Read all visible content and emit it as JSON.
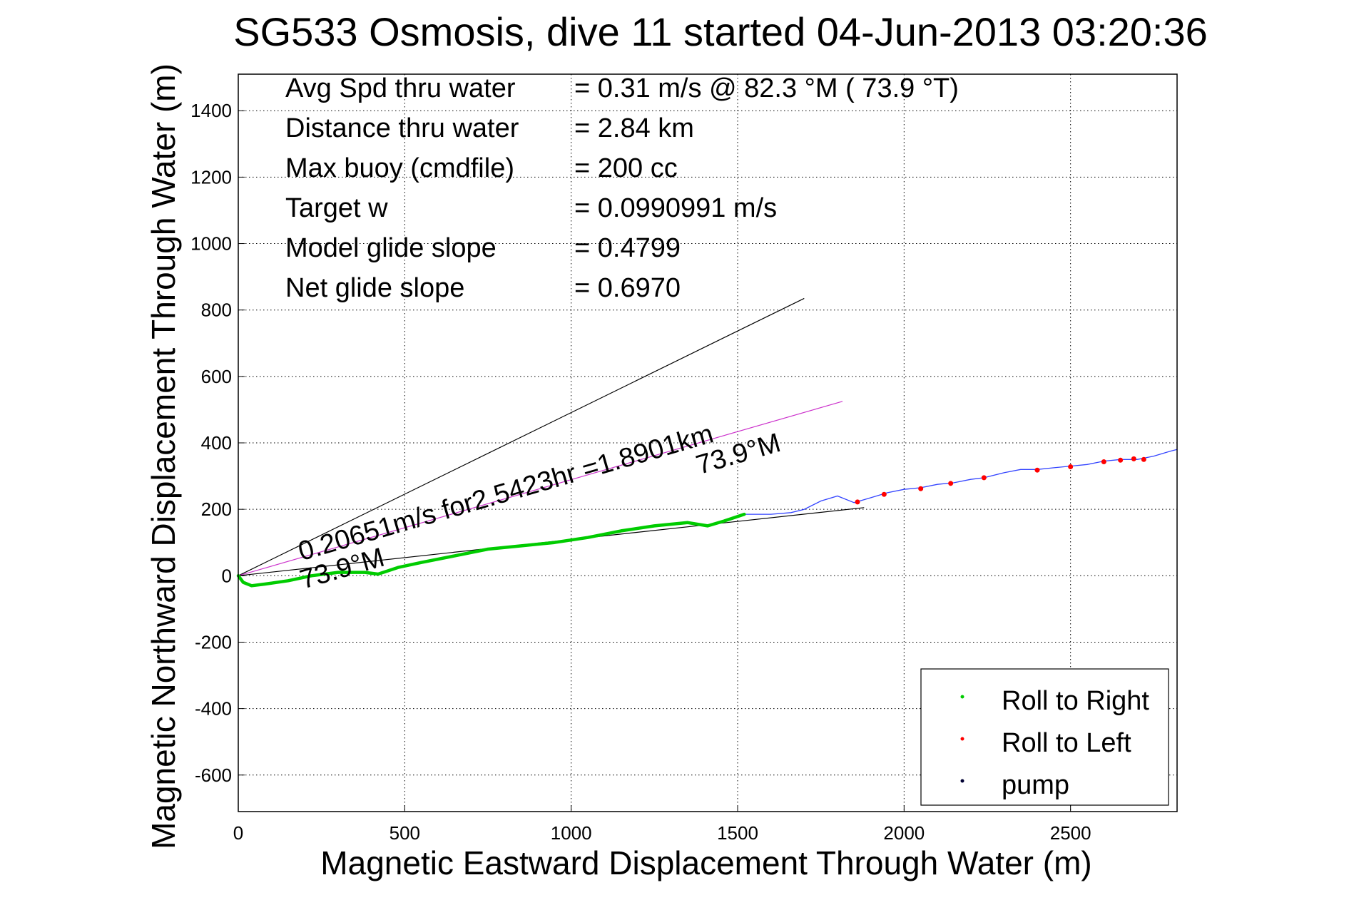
{
  "chart_data": {
    "type": "line",
    "title": "SG533 Osmosis, dive 11 started 04-Jun-2013 03:20:36",
    "xlabel": "Magnetic Eastward Displacement Through Water (m)",
    "ylabel": "Magnetic Northward Displacement Through Water (m)",
    "xlim": [
      0,
      2820
    ],
    "ylim": [
      -710,
      1510
    ],
    "xticks": [
      0,
      500,
      1000,
      1500,
      2000,
      2500
    ],
    "yticks": [
      -600,
      -400,
      -200,
      0,
      200,
      400,
      600,
      800,
      1000,
      1200,
      1400
    ],
    "grid": true,
    "stats": [
      {
        "label": "Avg Spd thru water",
        "value": "=  0.31 m/s @  82.3 °M ( 73.9 °T)"
      },
      {
        "label": "Distance thru water",
        "value": "=  2.84 km"
      },
      {
        "label": "Max buoy (cmdfile)",
        "value": "= 200 cc"
      },
      {
        "label": "Target w",
        "value": "= 0.0990991 m/s"
      },
      {
        "label": "Model glide slope",
        "value": "= 0.4799"
      },
      {
        "label": "Net glide slope",
        "value": "= 0.6970"
      }
    ],
    "annotations": {
      "current_text": "0.20651m/s for2.5423hr =1.8901km",
      "heading_label": "73.9°M"
    },
    "reference_lines": [
      {
        "color": "#000000",
        "points": [
          [
            0,
            0
          ],
          [
            1700,
            835
          ]
        ]
      },
      {
        "color": "#cc33cc",
        "points": [
          [
            0,
            0
          ],
          [
            1815,
            525
          ]
        ]
      },
      {
        "color": "#000000",
        "points": [
          [
            0,
            0
          ],
          [
            1880,
            205
          ]
        ]
      }
    ],
    "track": {
      "color": "#3344ff",
      "points": [
        [
          0,
          0
        ],
        [
          15,
          -20
        ],
        [
          40,
          -30
        ],
        [
          80,
          -25
        ],
        [
          150,
          -15
        ],
        [
          220,
          0
        ],
        [
          300,
          10
        ],
        [
          380,
          10
        ],
        [
          420,
          5
        ],
        [
          480,
          25
        ],
        [
          550,
          40
        ],
        [
          650,
          60
        ],
        [
          750,
          80
        ],
        [
          850,
          90
        ],
        [
          950,
          100
        ],
        [
          1050,
          115
        ],
        [
          1150,
          135
        ],
        [
          1250,
          150
        ],
        [
          1350,
          160
        ],
        [
          1410,
          150
        ],
        [
          1460,
          165
        ],
        [
          1520,
          185
        ],
        [
          1600,
          185
        ],
        [
          1660,
          190
        ],
        [
          1700,
          200
        ],
        [
          1750,
          225
        ],
        [
          1800,
          240
        ],
        [
          1850,
          220
        ],
        [
          1900,
          235
        ],
        [
          1950,
          250
        ],
        [
          2000,
          260
        ],
        [
          2050,
          265
        ],
        [
          2100,
          275
        ],
        [
          2150,
          280
        ],
        [
          2200,
          290
        ],
        [
          2240,
          295
        ],
        [
          2300,
          310
        ],
        [
          2350,
          320
        ],
        [
          2400,
          320
        ],
        [
          2450,
          325
        ],
        [
          2500,
          330
        ],
        [
          2550,
          335
        ],
        [
          2600,
          345
        ],
        [
          2650,
          350
        ],
        [
          2700,
          350
        ],
        [
          2750,
          360
        ],
        [
          2800,
          375
        ],
        [
          2820,
          380
        ]
      ]
    },
    "segments": [
      {
        "name": "Roll to Right",
        "color": "#00cc00",
        "x_range": [
          0,
          1550
        ]
      },
      {
        "name": "Roll to Left",
        "color": "#ff0000",
        "x_range": []
      },
      {
        "name": "pump",
        "color": "#000033",
        "x_range": [
          1530,
          1580
        ]
      }
    ],
    "left_markers": [
      [
        1860,
        222
      ],
      [
        1940,
        245
      ],
      [
        2050,
        262
      ],
      [
        2140,
        278
      ],
      [
        2240,
        295
      ],
      [
        2400,
        318
      ],
      [
        2500,
        328
      ],
      [
        2600,
        343
      ],
      [
        2650,
        348
      ],
      [
        2690,
        352
      ],
      [
        2720,
        350
      ]
    ],
    "legend": {
      "position": "bottom-right",
      "entries": [
        "Roll to Right",
        "Roll to Left",
        "pump"
      ]
    }
  }
}
